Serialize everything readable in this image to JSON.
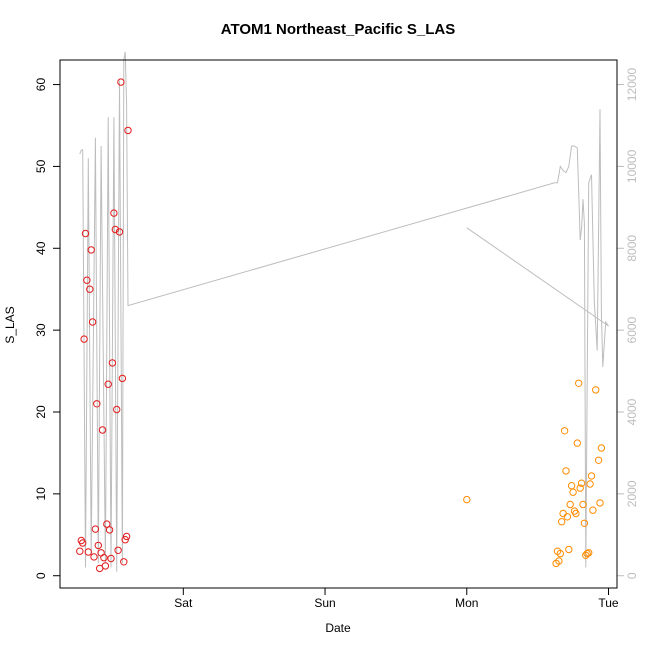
{
  "chart_data": {
    "type": "scatter",
    "title": "ATOM1 Northeast_Pacific S_LAS",
    "xlabel": "Date",
    "ylabel": "S_LAS",
    "x_ticks": [
      {
        "label": "Sat",
        "value": 0
      },
      {
        "label": "Sun",
        "value": 1
      },
      {
        "label": "Mon",
        "value": 2
      },
      {
        "label": "Tue",
        "value": 3
      }
    ],
    "xlim": [
      -0.87,
      3.06
    ],
    "ylim": [
      -1.5,
      63
    ],
    "y_ticks": [
      0,
      10,
      20,
      30,
      40,
      50,
      60
    ],
    "y2lim": [
      -300,
      12600
    ],
    "y2_ticks": [
      0,
      2000,
      4000,
      6000,
      8000,
      10000,
      12000
    ],
    "series": [
      {
        "color": "#e41a1c",
        "axis": "left",
        "points": [
          [
            -0.73,
            3.0
          ],
          [
            -0.72,
            4.3
          ],
          [
            -0.71,
            4.0
          ],
          [
            -0.7,
            28.9
          ],
          [
            -0.69,
            41.8
          ],
          [
            -0.68,
            36.1
          ],
          [
            -0.67,
            2.9
          ],
          [
            -0.66,
            35.0
          ],
          [
            -0.65,
            39.8
          ],
          [
            -0.64,
            31.0
          ],
          [
            -0.63,
            2.3
          ],
          [
            -0.62,
            5.7
          ],
          [
            -0.61,
            21.0
          ],
          [
            -0.6,
            3.7
          ],
          [
            -0.59,
            0.9
          ],
          [
            -0.58,
            2.8
          ],
          [
            -0.57,
            17.8
          ],
          [
            -0.56,
            2.2
          ],
          [
            -0.55,
            1.2
          ],
          [
            -0.54,
            6.3
          ],
          [
            -0.53,
            23.4
          ],
          [
            -0.52,
            5.6
          ],
          [
            -0.51,
            2.1
          ],
          [
            -0.5,
            26.0
          ],
          [
            -0.49,
            44.3
          ],
          [
            -0.48,
            42.3
          ],
          [
            -0.47,
            20.3
          ],
          [
            -0.46,
            3.1
          ],
          [
            -0.45,
            42.0
          ],
          [
            -0.44,
            60.3
          ],
          [
            -0.43,
            24.1
          ],
          [
            -0.42,
            1.7
          ],
          [
            -0.41,
            4.4
          ],
          [
            -0.4,
            4.8
          ],
          [
            -0.39,
            54.4
          ]
        ]
      },
      {
        "color": "#ff8c00",
        "axis": "left",
        "points": [
          [
            2.0,
            9.3
          ],
          [
            2.63,
            1.5
          ],
          [
            2.64,
            3.0
          ],
          [
            2.65,
            1.8
          ],
          [
            2.66,
            2.7
          ],
          [
            2.67,
            6.6
          ],
          [
            2.68,
            7.6
          ],
          [
            2.69,
            17.7
          ],
          [
            2.7,
            12.8
          ],
          [
            2.71,
            7.2
          ],
          [
            2.72,
            3.2
          ],
          [
            2.73,
            8.7
          ],
          [
            2.74,
            11.0
          ],
          [
            2.75,
            10.2
          ],
          [
            2.76,
            7.9
          ],
          [
            2.77,
            7.6
          ],
          [
            2.78,
            16.2
          ],
          [
            2.79,
            23.5
          ],
          [
            2.8,
            10.7
          ],
          [
            2.81,
            11.3
          ],
          [
            2.82,
            8.7
          ],
          [
            2.83,
            6.4
          ],
          [
            2.84,
            2.5
          ],
          [
            2.85,
            2.7
          ],
          [
            2.86,
            2.8
          ],
          [
            2.87,
            11.2
          ],
          [
            2.88,
            12.2
          ],
          [
            2.89,
            8.0
          ],
          [
            2.91,
            22.7
          ],
          [
            2.93,
            14.1
          ],
          [
            2.94,
            8.9
          ],
          [
            2.95,
            15.6
          ]
        ]
      },
      {
        "color": "#bdbdbd",
        "axis": "right",
        "line": true,
        "points": [
          [
            -0.73,
            10300
          ],
          [
            -0.72,
            10400
          ],
          [
            -0.71,
            10400
          ],
          [
            -0.69,
            200
          ],
          [
            -0.67,
            10200
          ],
          [
            -0.65,
            500
          ],
          [
            -0.62,
            10700
          ],
          [
            -0.6,
            300
          ],
          [
            -0.58,
            10500
          ],
          [
            -0.55,
            300
          ],
          [
            -0.53,
            11200
          ],
          [
            -0.51,
            200
          ],
          [
            -0.49,
            11200
          ],
          [
            -0.47,
            100
          ],
          [
            -0.45,
            12100
          ],
          [
            -0.43,
            300
          ],
          [
            -0.42,
            12600
          ],
          [
            -0.41,
            12800
          ],
          [
            -0.4,
            11500
          ],
          [
            -0.39,
            6600
          ],
          [
            2.62,
            9600
          ],
          [
            2.64,
            9600
          ],
          [
            2.66,
            10000
          ],
          [
            2.68,
            9900
          ],
          [
            2.7,
            9850
          ],
          [
            2.72,
            10000
          ],
          [
            2.74,
            10500
          ],
          [
            2.76,
            10500
          ],
          [
            2.78,
            10450
          ],
          [
            2.8,
            8200
          ],
          [
            2.81,
            8500
          ],
          [
            2.82,
            9200
          ],
          [
            2.83,
            8600
          ],
          [
            2.84,
            200
          ],
          [
            2.86,
            9600
          ],
          [
            2.88,
            9800
          ],
          [
            2.9,
            6700
          ],
          [
            2.92,
            5500
          ],
          [
            2.94,
            11400
          ],
          [
            2.95,
            6400
          ],
          [
            2.96,
            5100
          ],
          [
            2.98,
            6200
          ],
          [
            3.0,
            6100
          ],
          [
            2.0,
            8500
          ]
        ]
      }
    ]
  }
}
